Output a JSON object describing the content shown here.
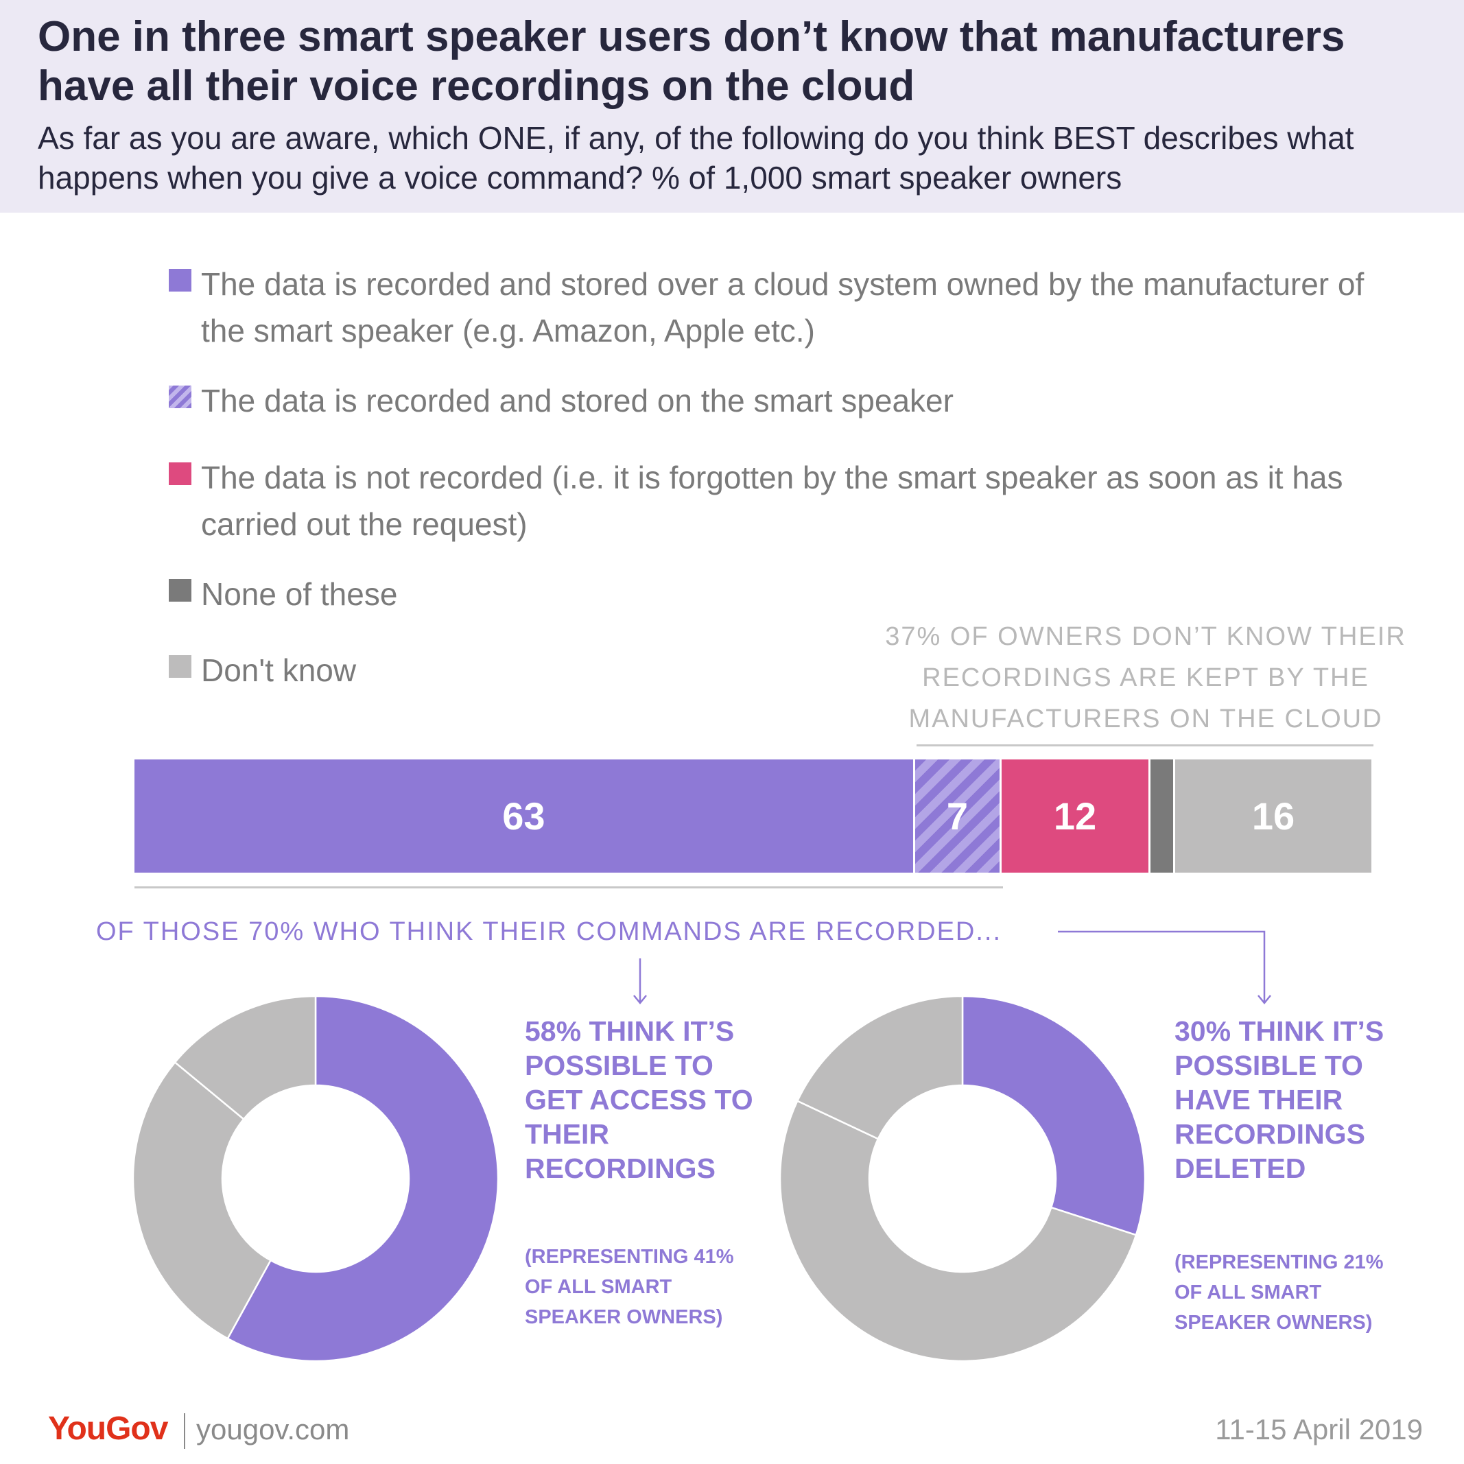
{
  "header": {
    "title": "One in three smart speaker users don’t know that manufacturers have all their voice recordings on the cloud",
    "subtitle": "As far as you are aware, which ONE, if any, of the following do you think BEST describes what happens when you give a voice command? % of 1,000 smart speaker owners"
  },
  "legend": [
    {
      "label": "The data is recorded and stored over a cloud system owned by the manufacturer of the smart speaker (e.g. Amazon, Apple etc.)",
      "color": "#8e79d6",
      "pattern": "solid"
    },
    {
      "label": "The data is recorded and stored on the smart speaker",
      "color": "#8e79d6",
      "pattern": "hatched"
    },
    {
      "label": "The data is not recorded (i.e. it is forgotten by the smart speaker as soon as it has carried out the request)",
      "color": "#de4a7f",
      "pattern": "solid"
    },
    {
      "label": "None of these",
      "color": "#7a7a7a",
      "pattern": "solid"
    },
    {
      "label": "Don't know",
      "color": "#bdbcbc",
      "pattern": "solid"
    }
  ],
  "annotations": {
    "not_aware": "37% of owners don’t know their recordings are kept by the manufacturers on the cloud",
    "recorded_lead": "OF THOSE 70% WHO THINK THEIR COMMANDS ARE RECORDED...",
    "access_callout": "58% think it’s possible to get access to their recordings",
    "access_note": "(Representing 41% of all smart speaker owners)",
    "delete_callout": "30% think it’s possible to have their recordings deleted",
    "delete_note": "(Representing 21% of all smart speaker owners)"
  },
  "chart_data": [
    {
      "type": "bar",
      "orientation": "horizontal-stacked",
      "unit": "%",
      "categories": [
        "Cloud (manufacturer)",
        "On the smart speaker",
        "Not recorded",
        "None of these",
        "Don't know"
      ],
      "values": [
        63,
        7,
        12,
        2,
        16
      ],
      "labels": [
        "63",
        "7",
        "12",
        "",
        "16"
      ],
      "colors": [
        "#8e79d6",
        "#8e79d6",
        "#de4a7f",
        "#7a7a7a",
        "#bdbcbc"
      ]
    },
    {
      "type": "pie",
      "variant": "donut",
      "title": "Possible to get access to their recordings",
      "values": [
        58,
        28,
        14
      ],
      "colors": [
        "#8e79d6",
        "#bdbcbc",
        "#bdbcbc"
      ]
    },
    {
      "type": "pie",
      "variant": "donut",
      "title": "Possible to have their recordings deleted",
      "values": [
        30,
        52,
        18
      ],
      "colors": [
        "#8e79d6",
        "#bdbcbc",
        "#bdbcbc"
      ]
    }
  ],
  "footer": {
    "logo": "YouGov",
    "site": "yougov.com",
    "date": "11-15 April 2019"
  }
}
